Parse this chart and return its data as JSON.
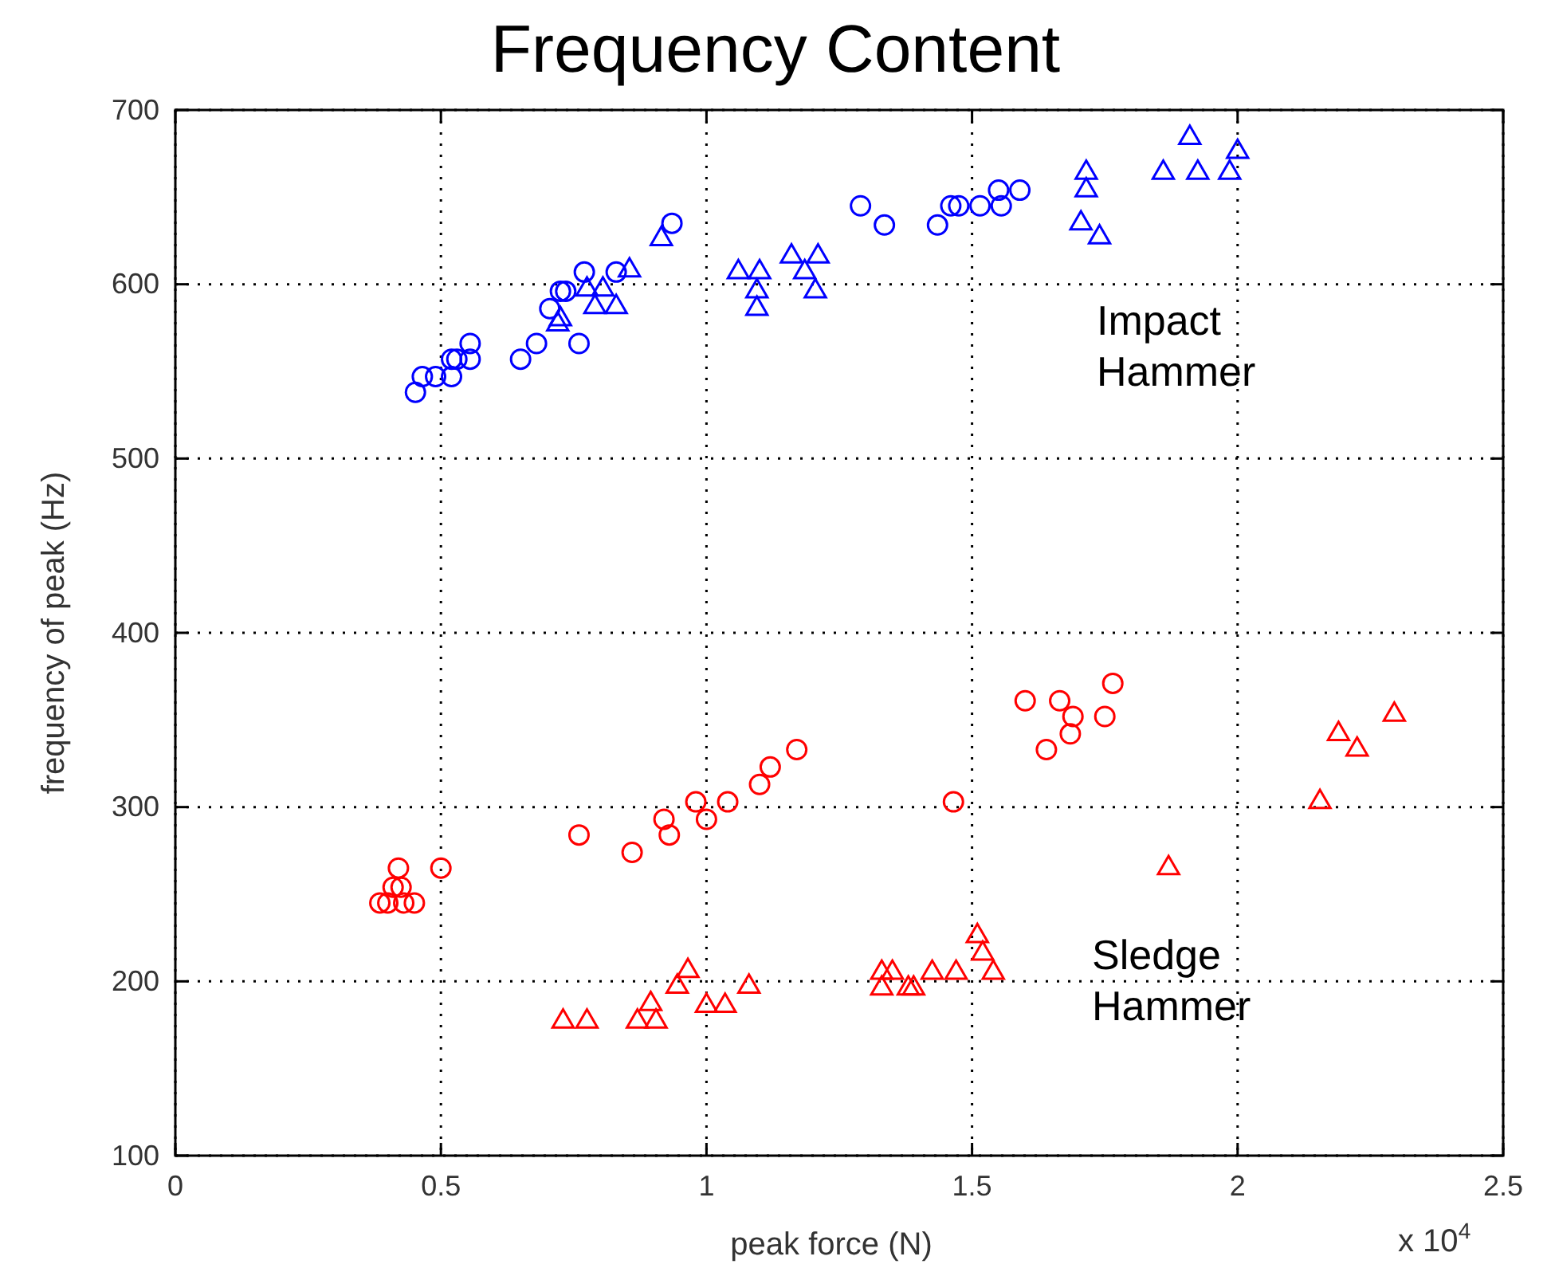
{
  "chart_data": {
    "type": "scatter",
    "title": "Frequency Content",
    "xlabel": "peak force (N)",
    "ylabel": "frequency of peak (Hz)",
    "xlim": [
      0,
      2.5
    ],
    "xticks": [
      0,
      0.5,
      1,
      1.5,
      2,
      2.5
    ],
    "ylim": [
      100,
      700
    ],
    "yticks": [
      100,
      200,
      300,
      400,
      500,
      600,
      700
    ],
    "grid": true,
    "annotations": [
      "Impact Hammer",
      "Sledge Hammer",
      "x 10$^{4}$"
    ],
    "series": [
      {
        "color": "#0000ff",
        "marker": "circle",
        "x": [
          0.452,
          0.465,
          0.49,
          0.52,
          0.52,
          0.53,
          0.555,
          0.555,
          0.65,
          0.68,
          0.705,
          0.76,
          0.77,
          0.725,
          0.735,
          0.83,
          0.935,
          1.29,
          1.335,
          1.435,
          1.46,
          1.475,
          1.515,
          1.555,
          1.55,
          1.59
        ],
        "values": [
          538,
          547,
          547,
          547,
          557,
          557,
          566,
          557,
          557,
          566,
          586,
          566,
          607,
          596,
          596,
          607,
          635,
          645,
          634,
          634,
          645,
          645,
          645,
          645,
          654,
          654
        ]
      },
      {
        "color": "#0000ff",
        "marker": "triangle",
        "x": [
          0.915,
          0.855,
          0.805,
          0.775,
          0.72,
          0.725,
          0.79,
          0.83,
          1.06,
          1.1,
          1.095,
          1.095,
          1.16,
          1.21,
          1.185,
          1.205,
          1.715,
          1.715,
          1.705,
          1.74,
          1.86,
          1.91,
          1.925,
          1.985,
          2.0
        ],
        "values": [
          626,
          608,
          597,
          597,
          577,
          580,
          587,
          587,
          607,
          607,
          596,
          586,
          616,
          616,
          607,
          596,
          664,
          654,
          635,
          627,
          664,
          684,
          664,
          664,
          676
        ]
      },
      {
        "color": "#ff0000",
        "marker": "circle",
        "x": [
          0.42,
          0.4,
          0.385,
          0.43,
          0.45,
          0.425,
          0.41,
          0.5,
          0.76,
          0.86,
          0.92,
          0.93,
          0.98,
          1.0,
          1.04,
          1.1,
          1.12,
          1.17,
          1.465,
          1.6,
          1.665,
          1.69,
          1.685,
          1.75,
          1.765,
          1.64
        ],
        "values": [
          265,
          245,
          245,
          245,
          245,
          254,
          254,
          265,
          284,
          274,
          293,
          284,
          303,
          293,
          303,
          313,
          323,
          333,
          303,
          361,
          361,
          352,
          342,
          352,
          371,
          333
        ]
      },
      {
        "color": "#ff0000",
        "marker": "triangle",
        "x": [
          0.73,
          0.775,
          0.87,
          0.905,
          0.895,
          0.945,
          0.965,
          1.0,
          1.035,
          1.08,
          1.33,
          1.33,
          1.35,
          1.38,
          1.39,
          1.425,
          1.47,
          1.51,
          1.52,
          1.54,
          1.87,
          2.155,
          2.19,
          2.225,
          2.295
        ],
        "values": [
          177,
          177,
          177,
          177,
          187,
          197,
          206,
          186,
          186,
          197,
          205,
          196,
          205,
          196,
          196,
          205,
          205,
          226,
          216,
          205,
          265,
          303,
          342,
          333,
          353
        ]
      }
    ]
  }
}
